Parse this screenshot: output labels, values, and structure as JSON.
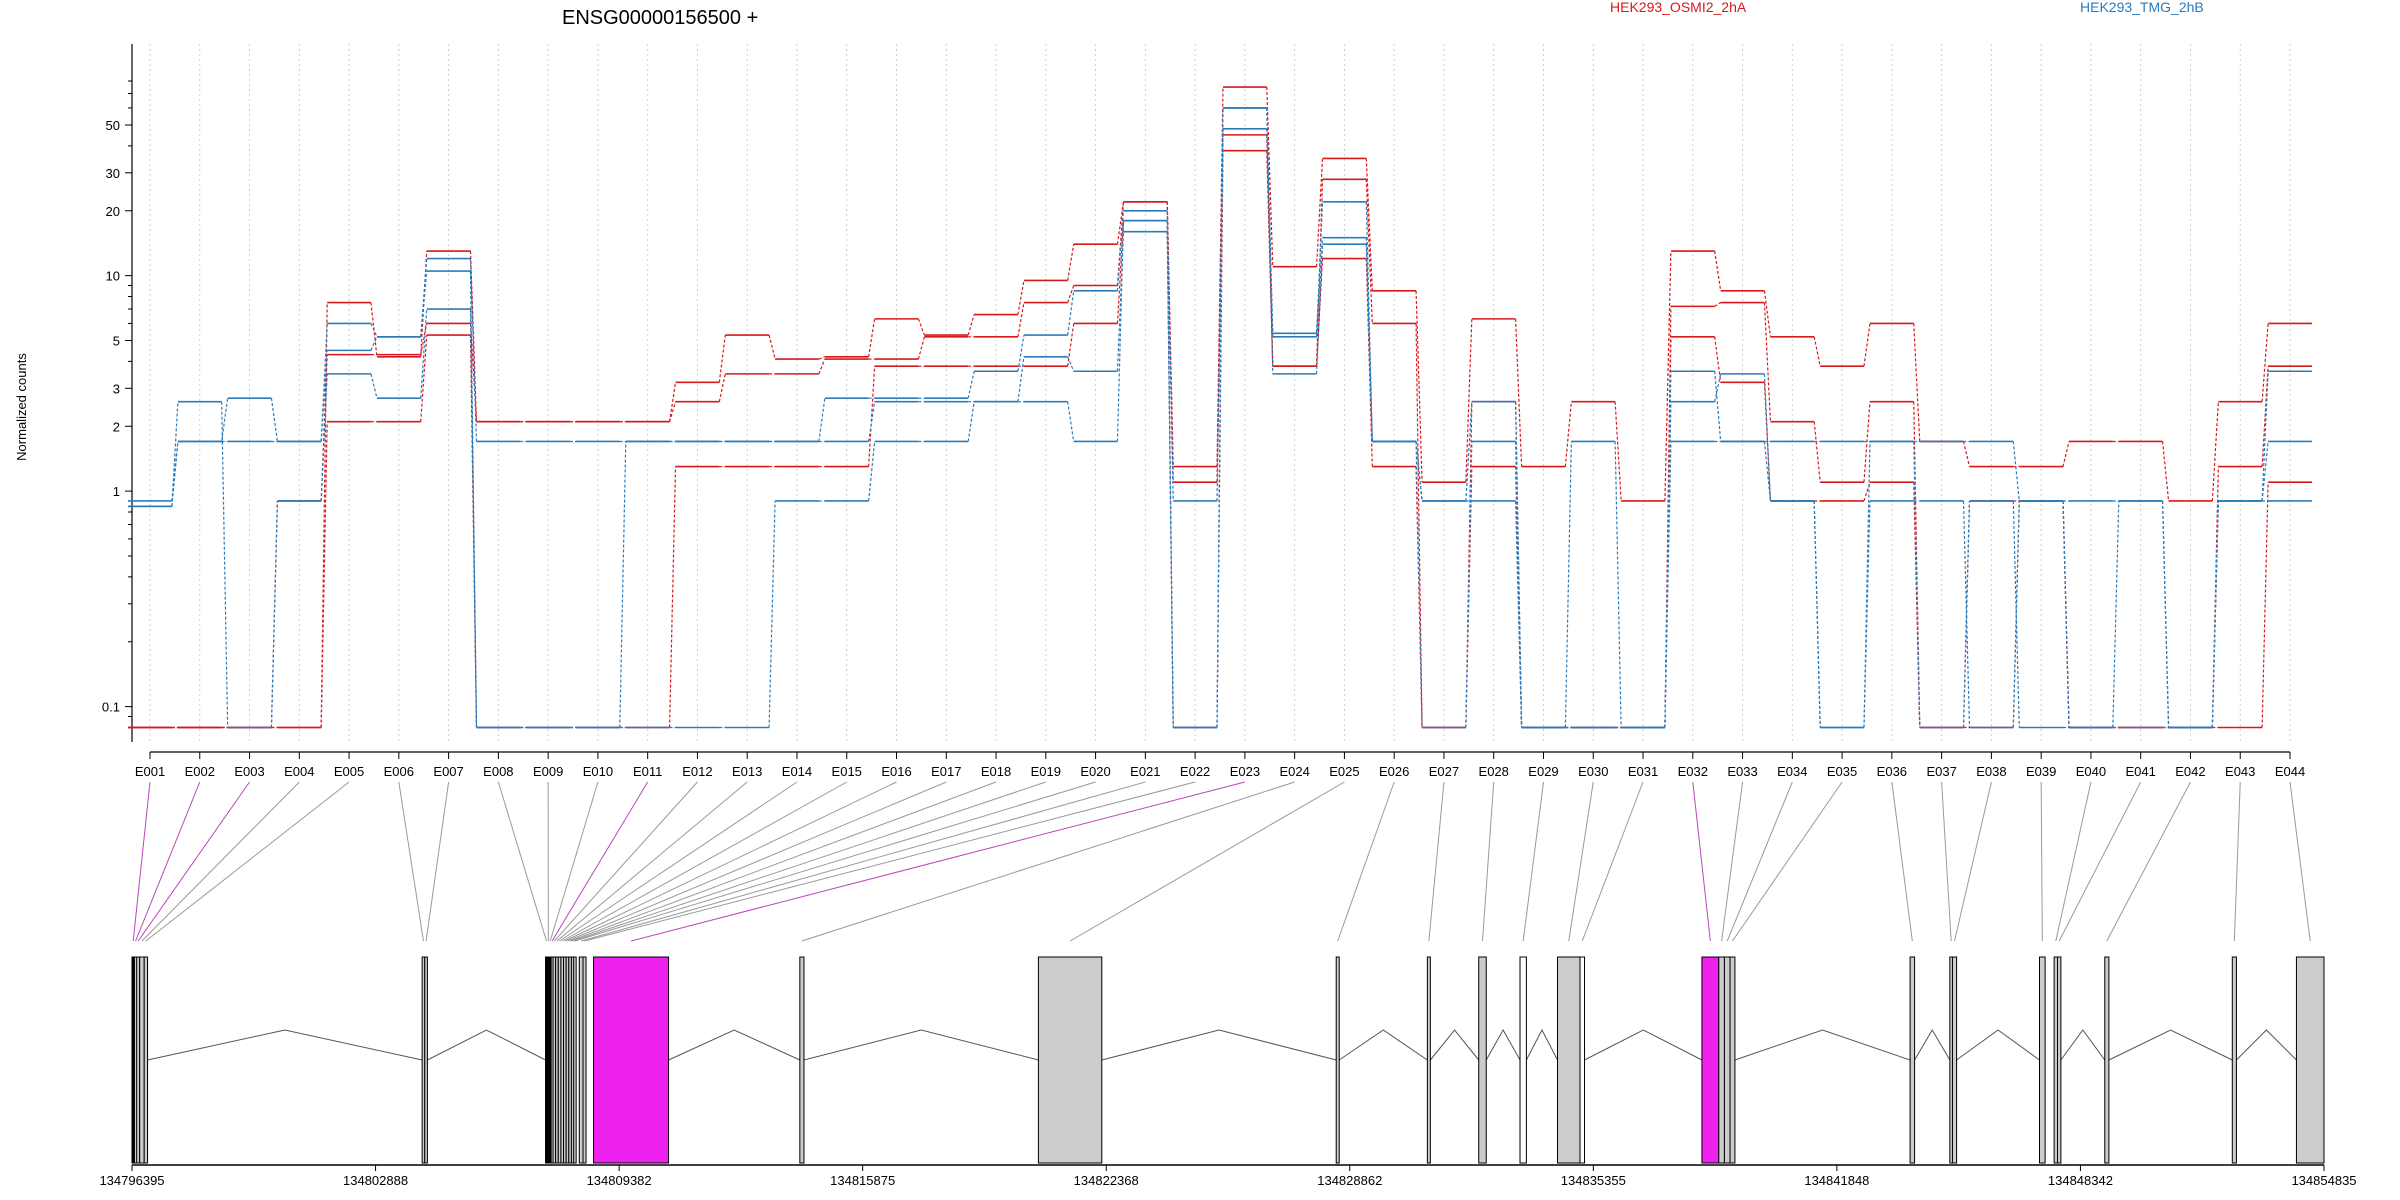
{
  "title": "ENSG00000156500 +",
  "ylabel": "Normalized counts",
  "legend": [
    {
      "name": "HEK293_OSMI2_2hA",
      "color": "#d7191c"
    },
    {
      "name": "HEK293_TMG_2hB",
      "color": "#2b7bba"
    }
  ],
  "chart_data": [
    {
      "type": "line",
      "title": "ENSG00000156500 +",
      "ylabel": "Normalized counts",
      "y_scale": "log",
      "ylim": [
        0.07,
        90
      ],
      "y_ticks": [
        0.1,
        1,
        2,
        3,
        5,
        10,
        20,
        30,
        50
      ],
      "y_tick_labels": [
        "0.1",
        "1",
        "2",
        "3",
        "5",
        "10",
        "20",
        "30",
        "50"
      ],
      "grid": "vertical dotted per exon",
      "categories": [
        "E001",
        "E002",
        "E003",
        "E004",
        "E005",
        "E006",
        "E007",
        "E008",
        "E009",
        "E010",
        "E011",
        "E012",
        "E013",
        "E014",
        "E015",
        "E016",
        "E017",
        "E018",
        "E019",
        "E020",
        "E021",
        "E022",
        "E023",
        "E024",
        "E025",
        "E026",
        "E027",
        "E028",
        "E029",
        "E030",
        "E031",
        "E032",
        "E033",
        "E034",
        "E035",
        "E036",
        "E037",
        "E038",
        "E039",
        "E040",
        "E041",
        "E042",
        "E043",
        "E044"
      ],
      "series": [
        {
          "name": "HEK293_OSMI2_2hA",
          "color": "#d7191c",
          "values": [
            0.08,
            0.08,
            0.08,
            0.08,
            7.5,
            4.2,
            13,
            2.1,
            2.1,
            2.1,
            2.1,
            3.2,
            5.3,
            4.1,
            4.2,
            6.3,
            5.3,
            6.6,
            9.5,
            14,
            22,
            1.3,
            75,
            11,
            35,
            8.5,
            1.1,
            6.3,
            1.3,
            2.6,
            0.9,
            13,
            8.5,
            5.2,
            3.8,
            6,
            1.7,
            1.3,
            1.3,
            1.7,
            1.7,
            0.9,
            2.6,
            6
          ]
        },
        {
          "name": "HEK293_OSMI2_2hA",
          "color": "#d7191c",
          "values": [
            0.08,
            0.08,
            0.08,
            0.9,
            4.3,
            4.3,
            6,
            2.1,
            2.1,
            2.1,
            2.1,
            2.6,
            3.5,
            3.5,
            4.1,
            4.1,
            5.2,
            5.2,
            7.5,
            9,
            22,
            1.1,
            45,
            3.8,
            28,
            6,
            0.08,
            2.6,
            0.08,
            0.08,
            0.08,
            7.2,
            7.5,
            2.1,
            1.1,
            2.6,
            0.08,
            0.9,
            0.9,
            0.08,
            0.08,
            0.08,
            1.3,
            3.8
          ]
        },
        {
          "name": "HEK293_OSMI2_2hA",
          "color": "#d7191c",
          "values": [
            0.08,
            0.08,
            0.08,
            0.08,
            2.1,
            2.1,
            5.3,
            0.08,
            0.08,
            0.08,
            0.08,
            1.3,
            1.3,
            1.3,
            1.3,
            3.8,
            3.8,
            3.8,
            3.8,
            6,
            18,
            0.08,
            38,
            3.8,
            12,
            1.3,
            0.08,
            1.3,
            0.08,
            0.08,
            0.08,
            5.2,
            3.2,
            0.9,
            0.9,
            1.1,
            0.08,
            0.08,
            0.9,
            0.08,
            0.08,
            0.08,
            0.08,
            1.1
          ]
        },
        {
          "name": "HEK293_TMG_2hB",
          "color": "#2b7bba",
          "values": [
            0.9,
            1.7,
            1.7,
            1.7,
            6,
            5.2,
            12,
            1.7,
            1.7,
            1.7,
            1.7,
            1.7,
            1.7,
            1.7,
            1.7,
            2.6,
            2.6,
            2.6,
            2.6,
            1.7,
            18,
            0.08,
            60,
            5.2,
            22,
            1.7,
            0.9,
            2.6,
            0.08,
            1.7,
            0.08,
            3.6,
            1.7,
            1.7,
            1.7,
            1.7,
            1.7,
            1.7,
            0.9,
            0.9,
            0.9,
            0.08,
            0.9,
            3.6
          ]
        },
        {
          "name": "HEK293_TMG_2hB",
          "color": "#2b7bba",
          "values": [
            0.85,
            1.7,
            2.7,
            1.7,
            4.5,
            5.2,
            10.5,
            0.08,
            0.08,
            0.08,
            1.7,
            1.7,
            1.7,
            1.7,
            2.7,
            2.7,
            2.7,
            3.6,
            5.3,
            8.5,
            20,
            0.9,
            48,
            5.4,
            15,
            1.7,
            0.08,
            1.7,
            0.08,
            0.08,
            0.08,
            2.6,
            3.5,
            0.9,
            0.08,
            1.7,
            0.08,
            0.9,
            0.08,
            0.08,
            0.9,
            0.08,
            0.9,
            1.7
          ]
        },
        {
          "name": "HEK293_TMG_2hB",
          "color": "#2b7bba",
          "values": [
            0.85,
            2.6,
            0.08,
            0.9,
            3.5,
            2.7,
            7,
            0.08,
            0.08,
            0.08,
            0.08,
            0.08,
            0.08,
            0.9,
            0.9,
            1.7,
            1.7,
            2.6,
            4.2,
            3.6,
            16,
            0.08,
            60,
            3.5,
            14,
            1.7,
            0.9,
            0.9,
            0.08,
            0.08,
            0.08,
            1.7,
            1.7,
            0.9,
            0.08,
            0.9,
            0.9,
            0.08,
            0.9,
            0.08,
            0.08,
            0.08,
            0.9,
            0.9
          ]
        }
      ]
    },
    {
      "type": "gene_model",
      "genomic_ticks": [
        "134796395",
        "134802888",
        "134809382",
        "134815875",
        "134822368",
        "134828862",
        "134835355",
        "134841848",
        "134848342",
        "134854835"
      ],
      "exons": [
        {
          "id": "E001",
          "start": 134796395,
          "end": 134796460,
          "color": "#000000",
          "connector": "#bb44bb"
        },
        {
          "id": "E002",
          "start": 134796460,
          "end": 134796520,
          "color": "#cccccc",
          "connector": "#bb44bb"
        },
        {
          "id": "E003",
          "start": 134796520,
          "end": 134796600,
          "color": "#cccccc",
          "connector": "#bb44bb"
        },
        {
          "id": "E004",
          "start": 134796600,
          "end": 134796720,
          "color": "#cccccc",
          "connector": "#999999"
        },
        {
          "id": "E005",
          "start": 134796720,
          "end": 134796810,
          "color": "#cccccc",
          "connector": "#999999"
        },
        {
          "id": "E006",
          "start": 134804130,
          "end": 134804200,
          "color": "#cccccc",
          "connector": "#999999"
        },
        {
          "id": "E007",
          "start": 134804200,
          "end": 134804270,
          "color": "#cccccc",
          "connector": "#999999"
        },
        {
          "id": "E008",
          "start": 134807420,
          "end": 134807470,
          "color": "#000000",
          "connector": "#999999"
        },
        {
          "id": "E009",
          "start": 134807470,
          "end": 134807520,
          "color": "#000000",
          "connector": "#999999"
        },
        {
          "id": "E010",
          "start": 134807520,
          "end": 134807570,
          "color": "#000000",
          "connector": "#999999"
        },
        {
          "id": "E011",
          "start": 134807570,
          "end": 134807620,
          "color": "#cccccc",
          "connector": "#bb44bb"
        },
        {
          "id": "E012",
          "start": 134807620,
          "end": 134807690,
          "color": "#cccccc",
          "connector": "#999999"
        },
        {
          "id": "E013",
          "start": 134807690,
          "end": 134807760,
          "color": "#cccccc",
          "connector": "#999999"
        },
        {
          "id": "E014",
          "start": 134807760,
          "end": 134807830,
          "color": "#cccccc",
          "connector": "#999999"
        },
        {
          "id": "E015",
          "start": 134807830,
          "end": 134807900,
          "color": "#cccccc",
          "connector": "#999999"
        },
        {
          "id": "E016",
          "start": 134807900,
          "end": 134807970,
          "color": "#cccccc",
          "connector": "#999999"
        },
        {
          "id": "E017",
          "start": 134807970,
          "end": 134808040,
          "color": "#cccccc",
          "connector": "#999999"
        },
        {
          "id": "E018",
          "start": 134808040,
          "end": 134808110,
          "color": "#cccccc",
          "connector": "#999999"
        },
        {
          "id": "E019",
          "start": 134808110,
          "end": 134808170,
          "color": "#cccccc",
          "connector": "#999999"
        },
        {
          "id": "E020",
          "start": 134808170,
          "end": 134808230,
          "color": "#cccccc",
          "connector": "#999999"
        },
        {
          "id": "E021",
          "start": 134808320,
          "end": 134808420,
          "color": "#cccccc",
          "connector": "#999999"
        },
        {
          "id": "E022",
          "start": 134808420,
          "end": 134808500,
          "color": "#cccccc",
          "connector": "#999999"
        },
        {
          "id": "E023",
          "start": 134808700,
          "end": 134810700,
          "color": "#ee22ee",
          "connector": "#bb44bb"
        },
        {
          "id": "E024",
          "start": 134814200,
          "end": 134814310,
          "color": "#cccccc",
          "connector": "#999999"
        },
        {
          "id": "E025",
          "start": 134820560,
          "end": 134822250,
          "color": "#cccccc",
          "connector": "#999999"
        },
        {
          "id": "E026",
          "start": 134828500,
          "end": 134828580,
          "color": "#cccccc",
          "connector": "#999999"
        },
        {
          "id": "E027",
          "start": 134830930,
          "end": 134831010,
          "color": "#cccccc",
          "connector": "#999999"
        },
        {
          "id": "E028",
          "start": 134832300,
          "end": 134832500,
          "color": "#cccccc",
          "connector": "#999999"
        },
        {
          "id": "E029",
          "start": 134833400,
          "end": 134833570,
          "color": "#ffffff",
          "connector": "#999999"
        },
        {
          "id": "E030",
          "start": 134834400,
          "end": 134835000,
          "color": "#cccccc",
          "connector": "#999999"
        },
        {
          "id": "E031",
          "start": 134835000,
          "end": 134835120,
          "color": "#ffffff",
          "connector": "#999999"
        },
        {
          "id": "E032",
          "start": 134838250,
          "end": 134838700,
          "color": "#ee22ee",
          "connector": "#bb44bb"
        },
        {
          "id": "E033",
          "start": 134838700,
          "end": 134838850,
          "color": "#cccccc",
          "connector": "#999999"
        },
        {
          "id": "E034",
          "start": 134838850,
          "end": 134839000,
          "color": "#cccccc",
          "connector": "#999999"
        },
        {
          "id": "E035",
          "start": 134839000,
          "end": 134839130,
          "color": "#cccccc",
          "connector": "#999999"
        },
        {
          "id": "E036",
          "start": 134843800,
          "end": 134843920,
          "color": "#cccccc",
          "connector": "#999999"
        },
        {
          "id": "E037",
          "start": 134844860,
          "end": 134844930,
          "color": "#cccccc",
          "connector": "#999999"
        },
        {
          "id": "E038",
          "start": 134844930,
          "end": 134845040,
          "color": "#cccccc",
          "connector": "#999999"
        },
        {
          "id": "E039",
          "start": 134847250,
          "end": 134847400,
          "color": "#cccccc",
          "connector": "#999999"
        },
        {
          "id": "E040",
          "start": 134847640,
          "end": 134847730,
          "color": "#cccccc",
          "connector": "#999999"
        },
        {
          "id": "E041",
          "start": 134847730,
          "end": 134847820,
          "color": "#cccccc",
          "connector": "#999999"
        },
        {
          "id": "E042",
          "start": 134848990,
          "end": 134849100,
          "color": "#cccccc",
          "connector": "#999999"
        },
        {
          "id": "E043",
          "start": 134852390,
          "end": 134852500,
          "color": "#cccccc",
          "connector": "#999999"
        },
        {
          "id": "E044",
          "start": 134854100,
          "end": 134854835,
          "color": "#cccccc",
          "connector": "#999999"
        }
      ]
    }
  ]
}
